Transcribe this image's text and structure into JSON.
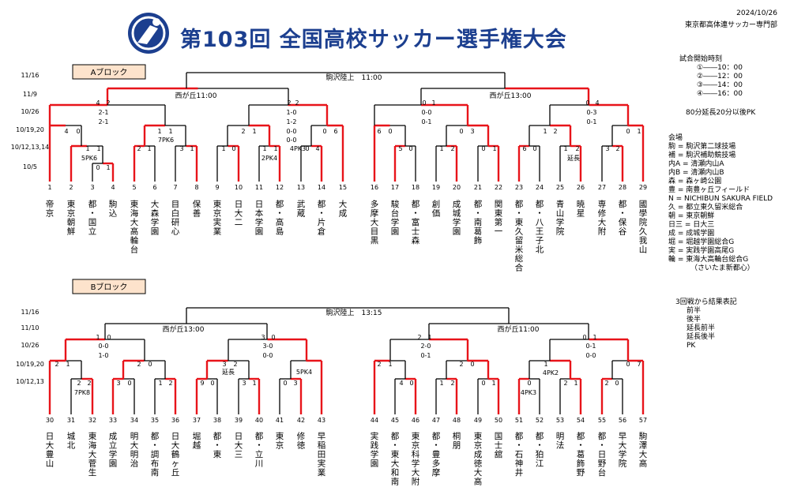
{
  "header": {
    "title": "第103回 全国高校サッカー選手権大会",
    "date": "2024/10/26",
    "org": "東京都高体連サッカー専門部"
  },
  "blocks": [
    {
      "label": "Aブロック",
      "final_label": "駒沢陸上　11:00",
      "semi_left_label": "西が丘11:00",
      "semi_right_label": "西が丘13:00",
      "date_rows": [
        "11/16",
        "11/9",
        "10/26",
        "10/19,20",
        "10/12,13,14",
        "10/5"
      ],
      "teams": [
        {
          "n": "1",
          "name": "帝京"
        },
        {
          "n": "2",
          "name": "東京朝鮮"
        },
        {
          "n": "3",
          "name": "都・国立"
        },
        {
          "n": "4",
          "name": "駒込"
        },
        {
          "n": "5",
          "name": "東海大高輪台"
        },
        {
          "n": "6",
          "name": "大森学園"
        },
        {
          "n": "7",
          "name": "目白研心"
        },
        {
          "n": "8",
          "name": "保善"
        },
        {
          "n": "9",
          "name": "東京実業"
        },
        {
          "n": "10",
          "name": "日大二"
        },
        {
          "n": "11",
          "name": "日本学園"
        },
        {
          "n": "12",
          "name": "都・高島"
        },
        {
          "n": "13",
          "name": "武蔵"
        },
        {
          "n": "14",
          "name": "都・片倉"
        },
        {
          "n": "15",
          "name": "大成"
        },
        {
          "n": "16",
          "name": "多摩大目黒"
        },
        {
          "n": "17",
          "name": "駿台学園"
        },
        {
          "n": "18",
          "name": "都・富士森"
        },
        {
          "n": "19",
          "name": "創価"
        },
        {
          "n": "20",
          "name": "成城学園"
        },
        {
          "n": "21",
          "name": "都・南葛飾"
        },
        {
          "n": "22",
          "name": "関東第一"
        },
        {
          "n": "23",
          "name": "都・東久留米総合"
        },
        {
          "n": "24",
          "name": "都・八王子北"
        },
        {
          "n": "25",
          "name": "青山学院"
        },
        {
          "n": "26",
          "name": "暁星"
        },
        {
          "n": "27",
          "name": "専修大附"
        },
        {
          "n": "28",
          "name": "都・保谷"
        },
        {
          "n": "29",
          "name": "國學院久我山"
        }
      ],
      "scores": [
        "4",
        "2",
        "2-1",
        "2-1",
        "2",
        "2",
        "1-0",
        "1-2",
        "0-0",
        "0-0",
        "0",
        "1",
        "0-0",
        "0-1",
        "0",
        "4",
        "0-3",
        "0-1",
        "4",
        "0",
        "1",
        "1",
        "7PK6",
        "2",
        "1",
        "0",
        "6",
        "6",
        "0",
        "0",
        "3",
        "1",
        "2",
        "0",
        "1",
        "1",
        "1",
        "5PK6",
        "2",
        "1",
        "3",
        "1",
        "1",
        "0",
        "1",
        "1",
        "2PK4",
        "4PK3",
        "0",
        "4",
        "5",
        "0",
        "1",
        "2",
        "0",
        "1",
        "6",
        "0",
        "1",
        "2",
        "延長",
        "3",
        "2",
        "0",
        "1"
      ]
    },
    {
      "label": "Bブロック",
      "final_label": "駒沢陸上　13:15",
      "semi_left_label": "西が丘13:00",
      "semi_right_label": "西が丘11:00",
      "date_rows": [
        "11/16",
        "11/10",
        "10/26",
        "10/19,20",
        "10/12,13"
      ],
      "teams": [
        {
          "n": "30",
          "name": "日大豊山"
        },
        {
          "n": "31",
          "name": "城北"
        },
        {
          "n": "32",
          "name": "東海大菅生"
        },
        {
          "n": "33",
          "name": "成立学園"
        },
        {
          "n": "34",
          "name": "明大明治"
        },
        {
          "n": "35",
          "name": "都・調布南"
        },
        {
          "n": "36",
          "name": "日大鶴ヶ丘"
        },
        {
          "n": "37",
          "name": "堀越"
        },
        {
          "n": "38",
          "name": "都・東"
        },
        {
          "n": "39",
          "name": "日大三"
        },
        {
          "n": "40",
          "name": "都・立川"
        },
        {
          "n": "41",
          "name": "東京"
        },
        {
          "n": "42",
          "name": "修徳"
        },
        {
          "n": "43",
          "name": "早稲田実業"
        },
        {
          "n": "44",
          "name": "実践学園"
        },
        {
          "n": "45",
          "name": "都・東大和南"
        },
        {
          "n": "46",
          "name": "東京科学大附"
        },
        {
          "n": "47",
          "name": "都・豊多摩"
        },
        {
          "n": "48",
          "name": "桐朋"
        },
        {
          "n": "49",
          "name": "東京成徳大高"
        },
        {
          "n": "50",
          "name": "国士舘"
        },
        {
          "n": "51",
          "name": "都・石神井"
        },
        {
          "n": "52",
          "name": "都・狛江"
        },
        {
          "n": "53",
          "name": "明法"
        },
        {
          "n": "54",
          "name": "都・葛飾野"
        },
        {
          "n": "55",
          "name": "都・日野台"
        },
        {
          "n": "56",
          "name": "早大学院"
        },
        {
          "n": "57",
          "name": "駒澤大高"
        }
      ],
      "scores": [
        "1",
        "0",
        "0-0",
        "1-0",
        "3",
        "0",
        "3-0",
        "0-0",
        "2",
        "1",
        "2-0",
        "0-1",
        "0",
        "1",
        "0-1",
        "0-0",
        "2",
        "1",
        "2",
        "0",
        "3",
        "2",
        "延長",
        "5PK4",
        "2",
        "1",
        "2",
        "0",
        "1",
        "4PK2",
        "0",
        "7",
        "2",
        "2",
        "7PK8",
        "3",
        "0",
        "1",
        "2",
        "9",
        "0",
        "3",
        "1",
        "0",
        "3",
        "4",
        "0",
        "1",
        "2",
        "0",
        "1",
        "4PK3",
        "0",
        "2",
        "1",
        "2",
        "0"
      ]
    }
  ],
  "side": {
    "kickoff_title": "試合開始時刻",
    "kickoff": [
      "①――10：00",
      "②――12：00",
      "③――14：00",
      "④――16：00"
    ],
    "extra": "80分延長20分以後PK",
    "venue_title": "会場",
    "venues": [
      "駒 = 駒沢第二球技場",
      "補 = 駒沢補助競技場",
      "内A = 清瀬内山A",
      "内B = 清瀬内山B",
      "森 = 森ヶ崎公園",
      "豊 = 南豊ヶ丘フィールド",
      "N = NICHIBUN SAKURA FIELD",
      "久 = 都立東久留米総合",
      "朝 = 東京朝鮮",
      "日三 = 日大三",
      "成 = 成城学園",
      "堀 = 堀越学園総合G",
      "実 = 実践学園高尾G",
      "輪 = 東海大高輪台総合G",
      "（さいたま新都心）"
    ],
    "legend_title": "3回戦から結果表記",
    "legend": [
      "前半",
      "後半",
      "延長前半",
      "延長後半",
      "PK"
    ]
  }
}
